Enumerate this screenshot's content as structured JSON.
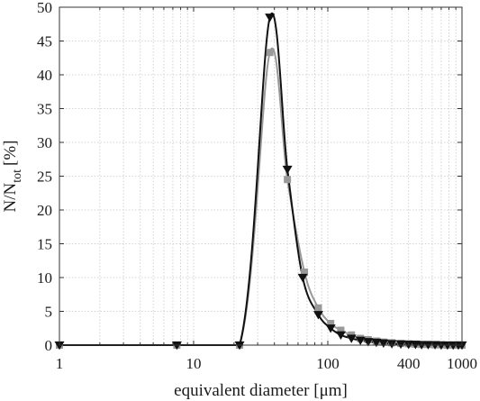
{
  "chart_data": {
    "type": "line",
    "title": "",
    "xlabel": "equivalent diameter [μm]",
    "ylabel": {
      "main": "N/N",
      "subscript": "tot",
      "unit": "[%]"
    },
    "x_scale": "log",
    "xlim": [
      1,
      1000
    ],
    "ylim": [
      0,
      50
    ],
    "grid": true,
    "x_ticks": [
      1,
      10,
      100,
      400,
      1000
    ],
    "x_tick_labels": [
      "1",
      "10",
      "100",
      "400",
      "1000"
    ],
    "y_ticks": [
      0,
      5,
      10,
      15,
      20,
      25,
      30,
      35,
      40,
      45,
      50
    ],
    "y_tick_labels": [
      "0",
      "5",
      "10",
      "15",
      "20",
      "25",
      "30",
      "35",
      "40",
      "45",
      "50"
    ],
    "series": [
      {
        "marker": "triangle-down",
        "color": "#111111",
        "x": [
          1,
          7.5,
          22,
          37,
          50,
          65,
          85,
          105,
          125,
          150,
          175,
          200,
          230,
          260,
          300,
          350,
          400,
          450,
          500,
          560,
          630,
          700,
          780,
          860,
          940,
          1000
        ],
        "y": [
          0,
          0,
          0,
          48.5,
          26.0,
          10.0,
          4.5,
          2.5,
          1.5,
          1.0,
          0.7,
          0.5,
          0.4,
          0.3,
          0.2,
          0.15,
          0.1,
          0.1,
          0.05,
          0.05,
          0.05,
          0,
          0,
          0,
          0,
          0
        ]
      },
      {
        "marker": "square",
        "color": "#999999",
        "x": [
          1,
          7.5,
          22,
          37,
          50,
          67,
          85,
          105,
          125,
          150,
          175,
          200,
          230,
          260,
          300,
          350,
          400,
          450,
          500,
          560,
          630,
          700,
          780,
          860,
          940,
          1000
        ],
        "y": [
          0,
          0,
          0,
          43.3,
          24.5,
          10.8,
          5.5,
          3.2,
          2.2,
          1.5,
          1.0,
          0.8,
          0.6,
          0.45,
          0.35,
          0.25,
          0.2,
          0.15,
          0.1,
          0.1,
          0.05,
          0.05,
          0,
          0,
          0,
          0
        ]
      }
    ]
  }
}
